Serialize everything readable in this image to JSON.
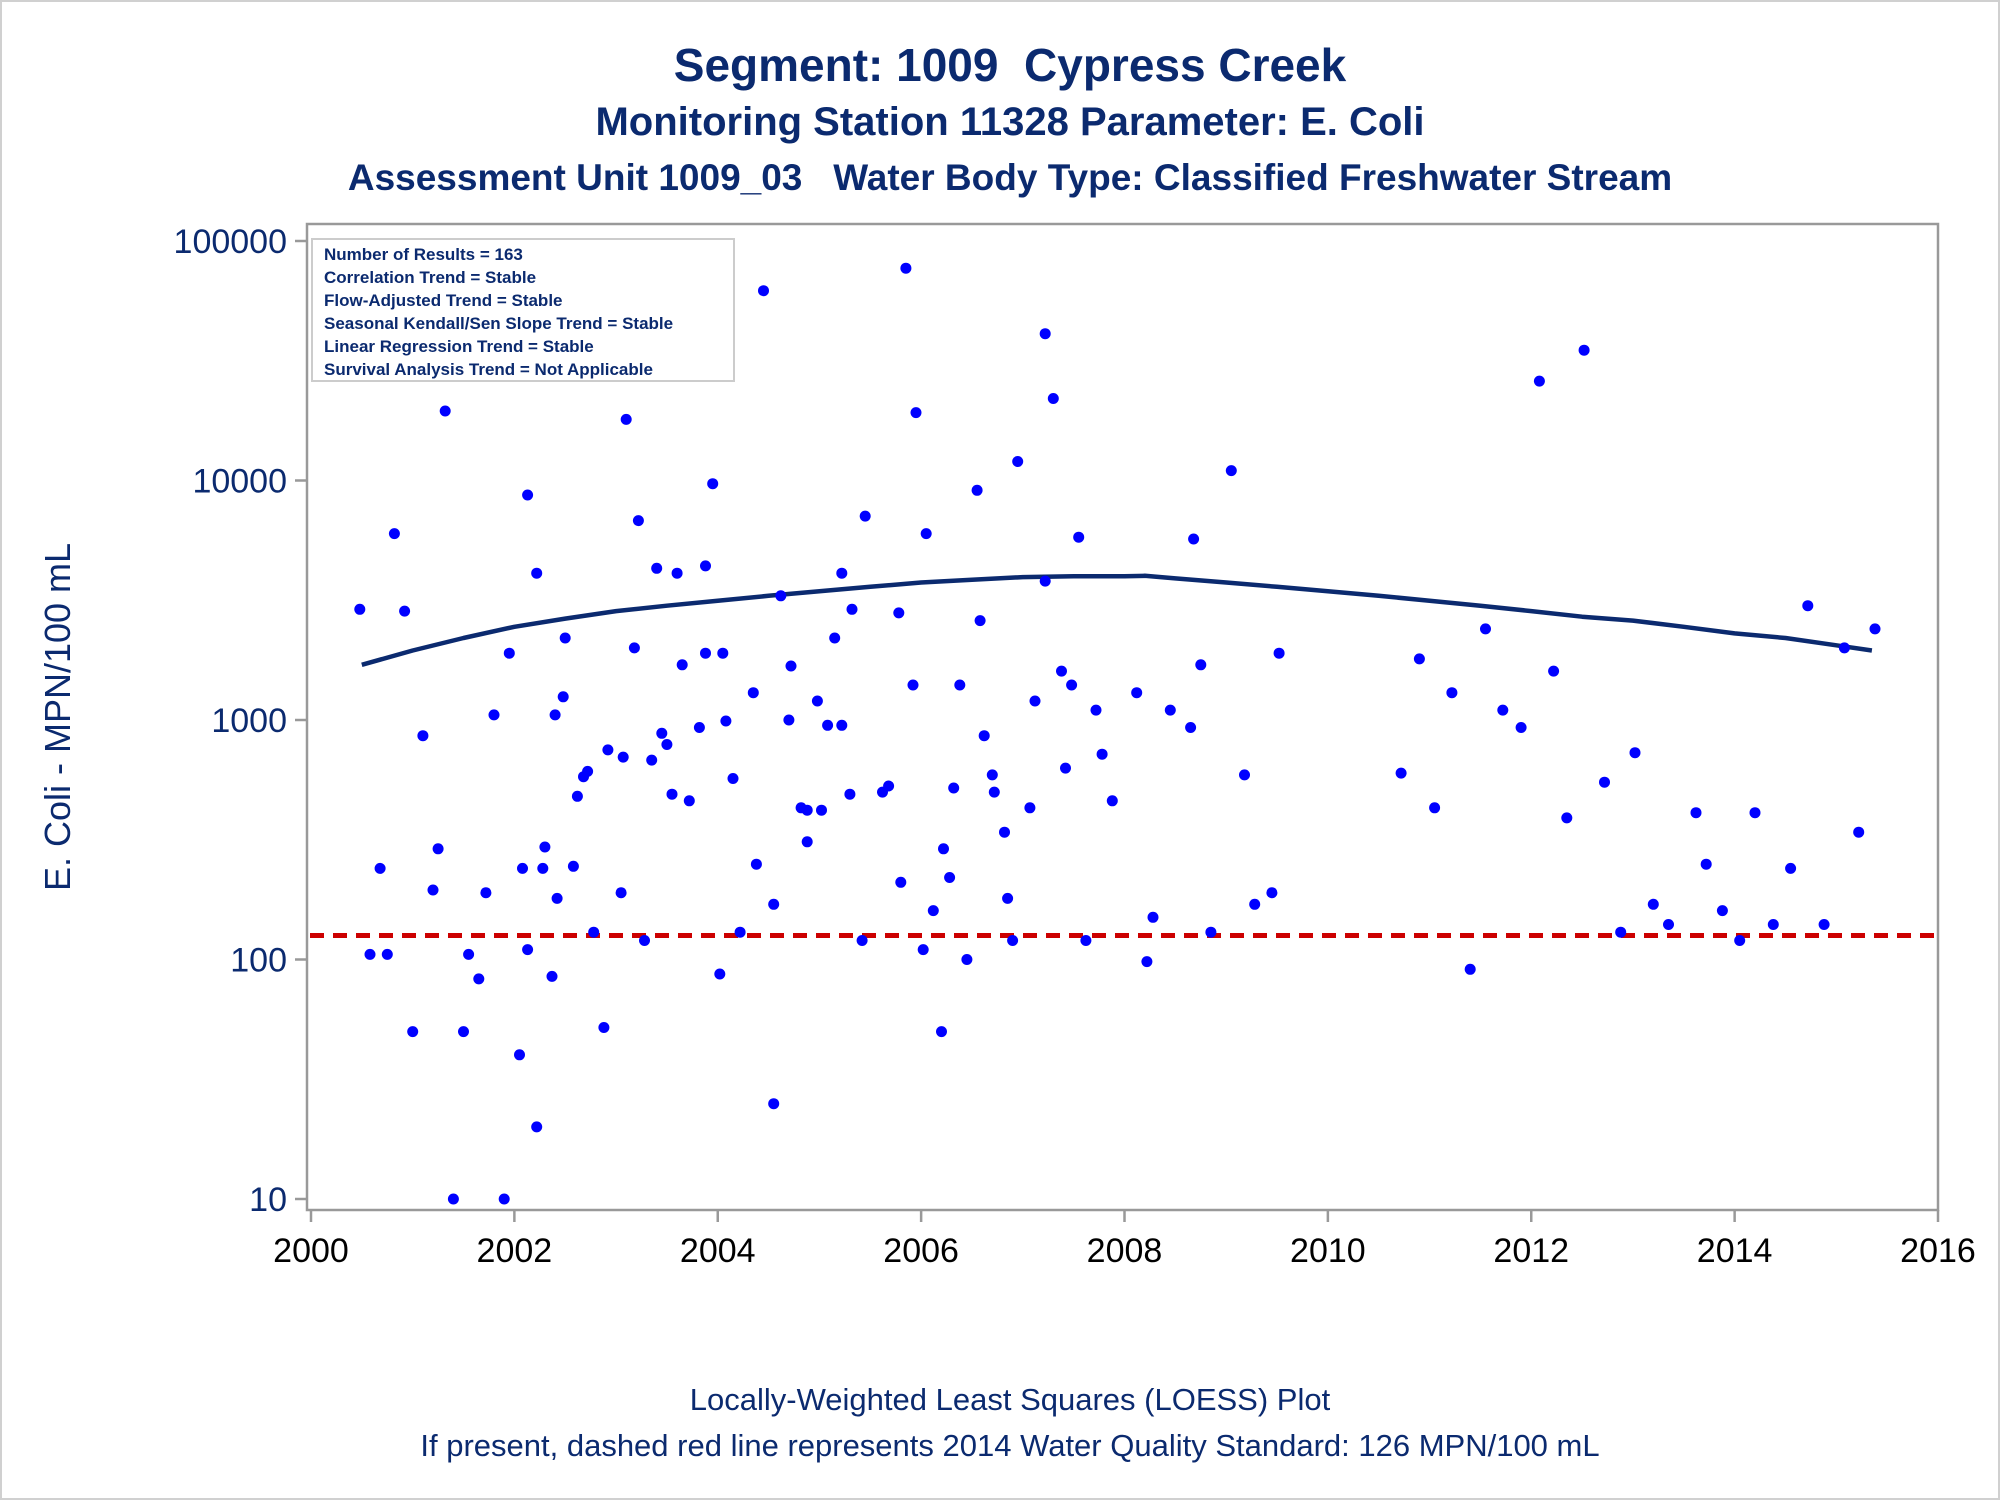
{
  "titles": {
    "line1": "Segment: 1009  Cypress Creek",
    "line2": "Monitoring Station 11328 Parameter: E. Coli",
    "line3": "Assessment Unit 1009_03   Water Body Type: Classified Freshwater Stream"
  },
  "footnotes": {
    "line1": "Locally-Weighted Least Squares (LOESS) Plot",
    "line2": "If present, dashed red line represents 2014 Water Quality Standard: 126 MPN/100 mL"
  },
  "inset": {
    "lines": [
      "Number of Results = 163",
      "Correlation Trend = Stable",
      "Flow-Adjusted Trend = Stable",
      "Seasonal Kendall/Sen Slope Trend = Stable",
      "Linear Regression Trend = Stable",
      "Survival Analysis Trend = Not Applicable"
    ]
  },
  "colors": {
    "text": "#0b2a6f",
    "points": "#0000ff",
    "loess": "#0b2a6f",
    "standard_line": "#cc0000",
    "axis": "#999999"
  },
  "chart_data": {
    "type": "scatter",
    "ylabel": "E. Coli - MPN/100 mL",
    "xlabel": "",
    "y_scale": "log",
    "xlim": [
      2000,
      2016
    ],
    "ylim": [
      10,
      100000
    ],
    "x_ticks": [
      2000,
      2002,
      2004,
      2006,
      2008,
      2010,
      2012,
      2014,
      2016
    ],
    "y_ticks": [
      10,
      100,
      1000,
      10000,
      100000
    ],
    "standard_line": {
      "value": 126,
      "style": "dashed"
    },
    "series": [
      {
        "kind": "points",
        "points": [
          [
            2000.48,
            2900
          ],
          [
            2000.58,
            105
          ],
          [
            2000.68,
            240
          ],
          [
            2000.75,
            105
          ],
          [
            2000.82,
            6000
          ],
          [
            2000.92,
            2850
          ],
          [
            2001.0,
            50
          ],
          [
            2001.1,
            860
          ],
          [
            2001.2,
            195
          ],
          [
            2001.25,
            290
          ],
          [
            2001.32,
            19500
          ],
          [
            2001.4,
            10
          ],
          [
            2001.5,
            50
          ],
          [
            2001.55,
            105
          ],
          [
            2001.65,
            83
          ],
          [
            2001.72,
            190
          ],
          [
            2001.8,
            1050
          ],
          [
            2001.9,
            10
          ],
          [
            2001.95,
            1900
          ],
          [
            2002.05,
            40
          ],
          [
            2002.08,
            240
          ],
          [
            2002.13,
            8700
          ],
          [
            2002.13,
            110
          ],
          [
            2002.22,
            4100
          ],
          [
            2002.22,
            20
          ],
          [
            2002.28,
            240
          ],
          [
            2002.3,
            295
          ],
          [
            2002.37,
            85
          ],
          [
            2002.4,
            1050
          ],
          [
            2002.42,
            180
          ],
          [
            2002.48,
            1250
          ],
          [
            2002.5,
            2200
          ],
          [
            2002.58,
            245
          ],
          [
            2002.62,
            480
          ],
          [
            2002.68,
            580
          ],
          [
            2002.72,
            610
          ],
          [
            2002.78,
            130
          ],
          [
            2002.88,
            52
          ],
          [
            2002.92,
            750
          ],
          [
            2003.05,
            190
          ],
          [
            2003.07,
            700
          ],
          [
            2003.1,
            18000
          ],
          [
            2003.18,
            2000
          ],
          [
            2003.22,
            6800
          ],
          [
            2003.28,
            120
          ],
          [
            2003.35,
            680
          ],
          [
            2003.4,
            4300
          ],
          [
            2003.45,
            880
          ],
          [
            2003.5,
            790
          ],
          [
            2003.55,
            490
          ],
          [
            2003.6,
            4100
          ],
          [
            2003.65,
            1700
          ],
          [
            2003.72,
            460
          ],
          [
            2003.82,
            930
          ],
          [
            2003.88,
            1900
          ],
          [
            2003.88,
            4400
          ],
          [
            2003.95,
            9700
          ],
          [
            2004.02,
            87
          ],
          [
            2004.05,
            1900
          ],
          [
            2004.08,
            990
          ],
          [
            2004.15,
            570
          ],
          [
            2004.22,
            130
          ],
          [
            2004.35,
            1300
          ],
          [
            2004.38,
            250
          ],
          [
            2004.45,
            62000
          ],
          [
            2004.55,
            170
          ],
          [
            2004.55,
            25
          ],
          [
            2004.62,
            3300
          ],
          [
            2004.7,
            1000
          ],
          [
            2004.72,
            1680
          ],
          [
            2004.82,
            430
          ],
          [
            2004.88,
            310
          ],
          [
            2004.88,
            420
          ],
          [
            2004.98,
            1200
          ],
          [
            2005.02,
            420
          ],
          [
            2005.08,
            950
          ],
          [
            2005.15,
            2200
          ],
          [
            2005.22,
            950
          ],
          [
            2005.22,
            4100
          ],
          [
            2005.3,
            490
          ],
          [
            2005.32,
            2900
          ],
          [
            2005.42,
            120
          ],
          [
            2005.45,
            7100
          ],
          [
            2005.62,
            500
          ],
          [
            2005.68,
            530
          ],
          [
            2005.78,
            2800
          ],
          [
            2005.8,
            210
          ],
          [
            2005.85,
            77000
          ],
          [
            2005.92,
            1400
          ],
          [
            2005.95,
            19200
          ],
          [
            2006.02,
            110
          ],
          [
            2006.05,
            6000
          ],
          [
            2006.12,
            160
          ],
          [
            2006.2,
            50
          ],
          [
            2006.22,
            290
          ],
          [
            2006.28,
            220
          ],
          [
            2006.32,
            520
          ],
          [
            2006.38,
            1400
          ],
          [
            2006.45,
            100
          ],
          [
            2006.55,
            9100
          ],
          [
            2006.58,
            2600
          ],
          [
            2006.62,
            860
          ],
          [
            2006.7,
            590
          ],
          [
            2006.72,
            500
          ],
          [
            2006.82,
            340
          ],
          [
            2006.85,
            180
          ],
          [
            2006.9,
            120
          ],
          [
            2006.95,
            12000
          ],
          [
            2007.07,
            430
          ],
          [
            2007.12,
            1200
          ],
          [
            2007.22,
            41000
          ],
          [
            2007.22,
            3800
          ],
          [
            2007.3,
            22000
          ],
          [
            2007.38,
            1600
          ],
          [
            2007.42,
            630
          ],
          [
            2007.48,
            1400
          ],
          [
            2007.55,
            5800
          ],
          [
            2007.62,
            120
          ],
          [
            2007.72,
            1100
          ],
          [
            2007.78,
            720
          ],
          [
            2007.88,
            460
          ],
          [
            2008.12,
            1300
          ],
          [
            2008.22,
            98
          ],
          [
            2008.28,
            150
          ],
          [
            2008.45,
            1100
          ],
          [
            2008.65,
            930
          ],
          [
            2008.68,
            5700
          ],
          [
            2008.75,
            1700
          ],
          [
            2008.85,
            130
          ],
          [
            2009.05,
            11000
          ],
          [
            2009.18,
            590
          ],
          [
            2009.28,
            170
          ],
          [
            2009.45,
            190
          ],
          [
            2009.52,
            1900
          ],
          [
            2010.72,
            600
          ],
          [
            2010.9,
            1800
          ],
          [
            2011.05,
            430
          ],
          [
            2011.22,
            1300
          ],
          [
            2011.4,
            91
          ],
          [
            2011.55,
            2400
          ],
          [
            2011.72,
            1100
          ],
          [
            2011.9,
            930
          ],
          [
            2012.08,
            26000
          ],
          [
            2012.22,
            1600
          ],
          [
            2012.35,
            390
          ],
          [
            2012.52,
            35000
          ],
          [
            2012.72,
            550
          ],
          [
            2012.88,
            130
          ],
          [
            2013.02,
            730
          ],
          [
            2013.2,
            170
          ],
          [
            2013.35,
            140
          ],
          [
            2013.62,
            410
          ],
          [
            2013.72,
            250
          ],
          [
            2013.88,
            160
          ],
          [
            2014.05,
            120
          ],
          [
            2014.2,
            410
          ],
          [
            2014.38,
            140
          ],
          [
            2014.55,
            240
          ],
          [
            2014.72,
            3000
          ],
          [
            2014.88,
            140
          ],
          [
            2015.08,
            2000
          ],
          [
            2015.22,
            340
          ],
          [
            2015.38,
            2400
          ]
        ]
      },
      {
        "kind": "loess",
        "points": [
          [
            2000.5,
            1700
          ],
          [
            2001.0,
            1950
          ],
          [
            2001.5,
            2200
          ],
          [
            2002.0,
            2450
          ],
          [
            2002.5,
            2650
          ],
          [
            2003.0,
            2850
          ],
          [
            2003.5,
            3000
          ],
          [
            2004.0,
            3150
          ],
          [
            2004.5,
            3300
          ],
          [
            2005.0,
            3450
          ],
          [
            2005.5,
            3600
          ],
          [
            2006.0,
            3750
          ],
          [
            2006.5,
            3850
          ],
          [
            2007.0,
            3950
          ],
          [
            2007.5,
            3980
          ],
          [
            2008.0,
            3980
          ],
          [
            2008.2,
            4000
          ],
          [
            2008.5,
            3900
          ],
          [
            2009.0,
            3750
          ],
          [
            2009.5,
            3600
          ],
          [
            2010.0,
            3450
          ],
          [
            2010.5,
            3300
          ],
          [
            2011.0,
            3150
          ],
          [
            2011.5,
            3000
          ],
          [
            2012.0,
            2850
          ],
          [
            2012.5,
            2700
          ],
          [
            2013.0,
            2600
          ],
          [
            2013.5,
            2450
          ],
          [
            2014.0,
            2300
          ],
          [
            2014.5,
            2200
          ],
          [
            2015.0,
            2050
          ],
          [
            2015.35,
            1950
          ]
        ]
      }
    ]
  }
}
